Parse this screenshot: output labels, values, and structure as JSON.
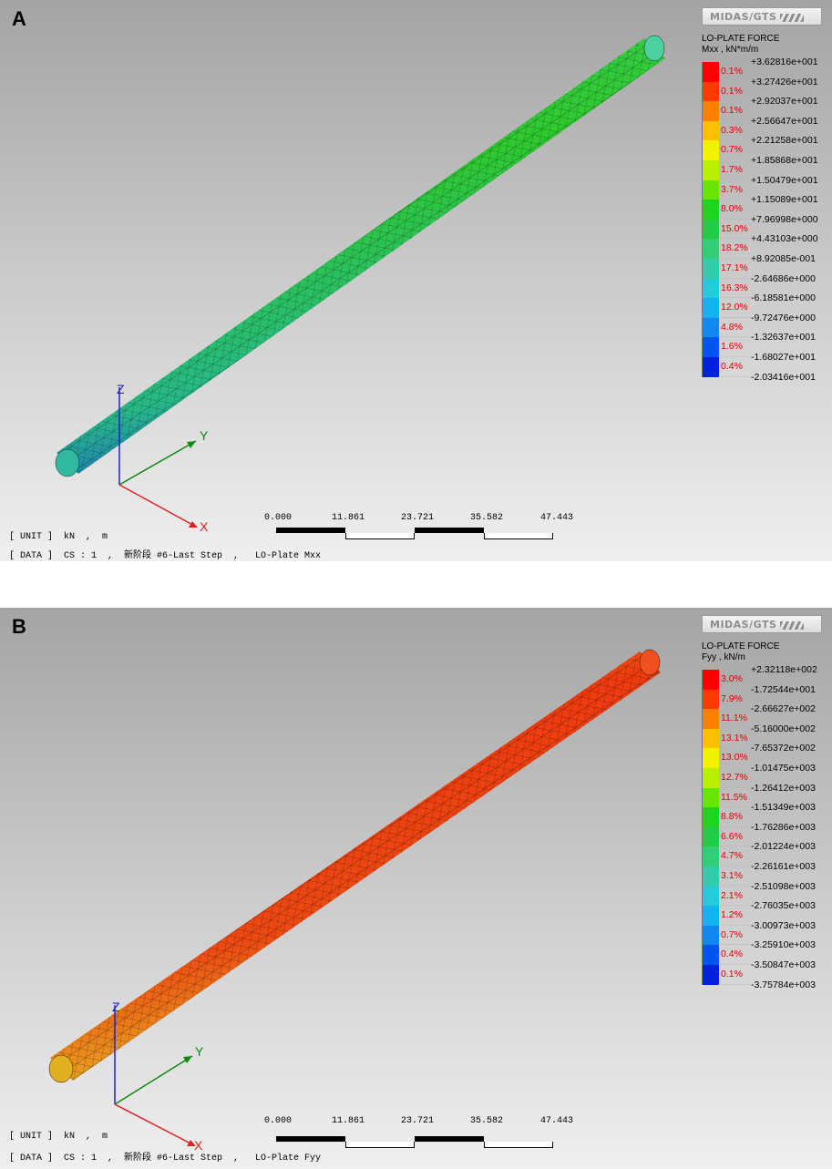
{
  "panels": [
    {
      "letter": "A",
      "brand": "MIDAS/GTS",
      "legend_title": "LO-PLATE FORCE",
      "legend_unit": "Mxx , kN*m/m",
      "legend_values": [
        "+3.62816e+001",
        "+3.27426e+001",
        "+2.92037e+001",
        "+2.56647e+001",
        "+2.21258e+001",
        "+1.85868e+001",
        "+1.50479e+001",
        "+1.15089e+001",
        "+7.96998e+000",
        "+4.43103e+000",
        "+8.92085e-001",
        "-2.64686e+000",
        "-6.18581e+000",
        "-9.72476e+000",
        "-1.32637e+001",
        "-1.68027e+001",
        "-2.03416e+001"
      ],
      "legend_percents": [
        "0.1%",
        "0.1%",
        "0.1%",
        "0.3%",
        "0.7%",
        "1.7%",
        "3.7%",
        "8.0%",
        "15.0%",
        "18.2%",
        "17.1%",
        "16.3%",
        "12.0%",
        "4.8%",
        "1.6%",
        "0.4%"
      ],
      "axis_labels": {
        "x": "X",
        "y": "Y",
        "z": "Z"
      },
      "scale_labels": [
        "0.000",
        "11.861",
        "23.721",
        "35.582",
        "47.443"
      ],
      "unit_line": "[ UNIT ]  kN  ,  m",
      "data_line": "[ DATA ]  CS : 1  ,  新阶段 #6-Last Step  ,   LO-Plate Mxx"
    },
    {
      "letter": "B",
      "brand": "MIDAS/GTS",
      "legend_title": "LO-PLATE FORCE",
      "legend_unit": "Fyy , kN/m",
      "legend_values": [
        "+2.32118e+002",
        "-1.72544e+001",
        "-2.66627e+002",
        "-5.16000e+002",
        "-7.65372e+002",
        "-1.01475e+003",
        "-1.26412e+003",
        "-1.51349e+003",
        "-1.76286e+003",
        "-2.01224e+003",
        "-2.26161e+003",
        "-2.51098e+003",
        "-2.76035e+003",
        "-3.00973e+003",
        "-3.25910e+003",
        "-3.50847e+003",
        "-3.75784e+003"
      ],
      "legend_percents": [
        "3.0%",
        "7.9%",
        "11.1%",
        "13.1%",
        "13.0%",
        "12.7%",
        "11.5%",
        "8.8%",
        "6.6%",
        "4.7%",
        "3.1%",
        "2.1%",
        "1.2%",
        "0.7%",
        "0.4%",
        "0.1%"
      ],
      "axis_labels": {
        "x": "X",
        "y": "Y",
        "z": "Z"
      },
      "scale_labels": [
        "0.000",
        "11.861",
        "23.721",
        "35.582",
        "47.443"
      ],
      "unit_line": "[ UNIT ]  kN  ,  m",
      "data_line": "[ DATA ]  CS : 1  ,  新阶段 #6-Last Step  ,   LO-Plate Fyy"
    }
  ],
  "colors": {
    "legend_scale": [
      "#ff0000",
      "#ff3a00",
      "#ff8000",
      "#ffc000",
      "#f2f200",
      "#b8f000",
      "#66e600",
      "#1fd41f",
      "#22cc44",
      "#33cc77",
      "#33ccaa",
      "#22ccdd",
      "#11b4ee",
      "#1188ee",
      "#0055ee",
      "#0022dd"
    ],
    "pipe_a_main": "#35cc35",
    "pipe_b_main": "#ee3a10"
  }
}
